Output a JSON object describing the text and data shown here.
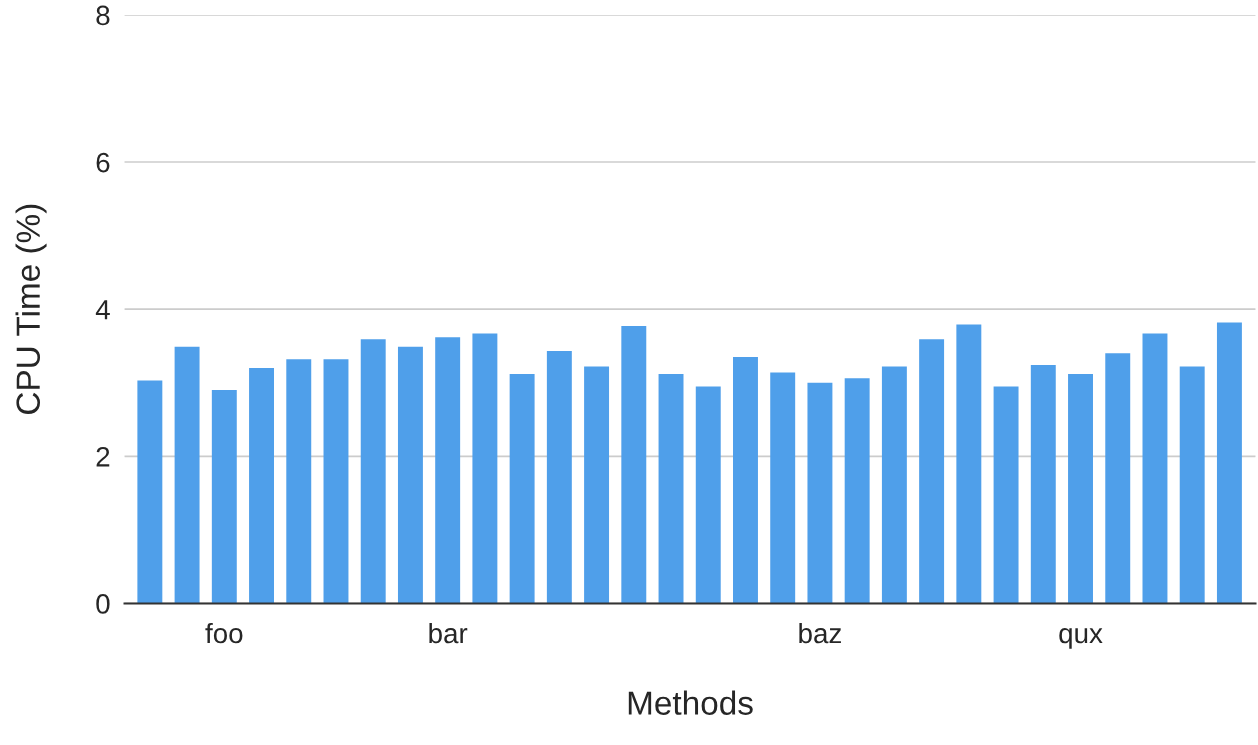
{
  "chart_data": {
    "type": "bar",
    "xlabel": "Methods",
    "ylabel": "CPU Time (%)",
    "categories": [
      null,
      null,
      "foo",
      null,
      null,
      null,
      null,
      null,
      "bar",
      null,
      null,
      null,
      null,
      null,
      null,
      null,
      null,
      null,
      "baz",
      null,
      null,
      null,
      null,
      null,
      null,
      "qux",
      null,
      null,
      null,
      null
    ],
    "values": [
      3.03,
      3.49,
      2.9,
      3.2,
      3.32,
      3.32,
      3.59,
      3.49,
      3.62,
      3.67,
      3.12,
      3.43,
      3.22,
      3.77,
      3.12,
      2.95,
      3.35,
      3.14,
      3.0,
      3.06,
      3.22,
      3.59,
      3.79,
      2.95,
      3.24,
      3.12,
      3.4,
      3.67,
      3.22,
      3.82
    ],
    "color": "#4f9fea",
    "ylim": [
      0,
      8
    ],
    "yticks": [
      0,
      2,
      4,
      6,
      8
    ],
    "grid": "y"
  }
}
